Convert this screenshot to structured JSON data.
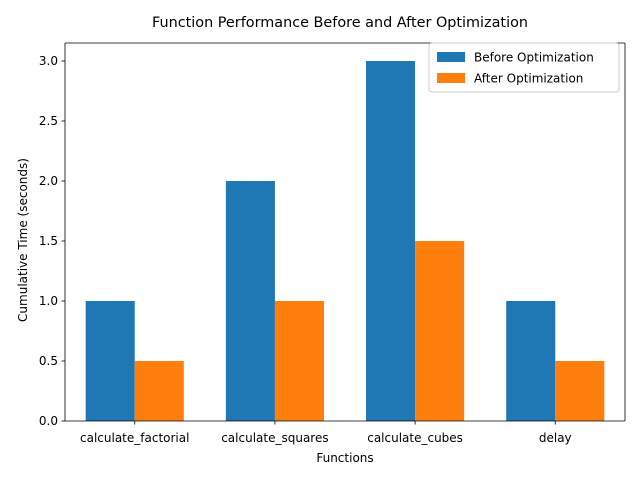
{
  "chart_data": {
    "type": "bar",
    "title": "Function Performance Before and After Optimization",
    "xlabel": "Functions",
    "ylabel": "Cumulative Time (seconds)",
    "categories": [
      "calculate_factorial",
      "calculate_squares",
      "calculate_cubes",
      "delay"
    ],
    "series": [
      {
        "name": "Before Optimization",
        "values": [
          1.0,
          2.0,
          3.0,
          1.0
        ],
        "color": "#1f77b4"
      },
      {
        "name": "After Optimization",
        "values": [
          0.5,
          1.0,
          1.5,
          0.5
        ],
        "color": "#ff7f0e"
      }
    ],
    "ylim": [
      0,
      3.15
    ],
    "yticks": [
      "0.0",
      "0.5",
      "1.0",
      "1.5",
      "2.0",
      "2.5",
      "3.0"
    ],
    "grid": false,
    "legend_position": "top-right"
  }
}
